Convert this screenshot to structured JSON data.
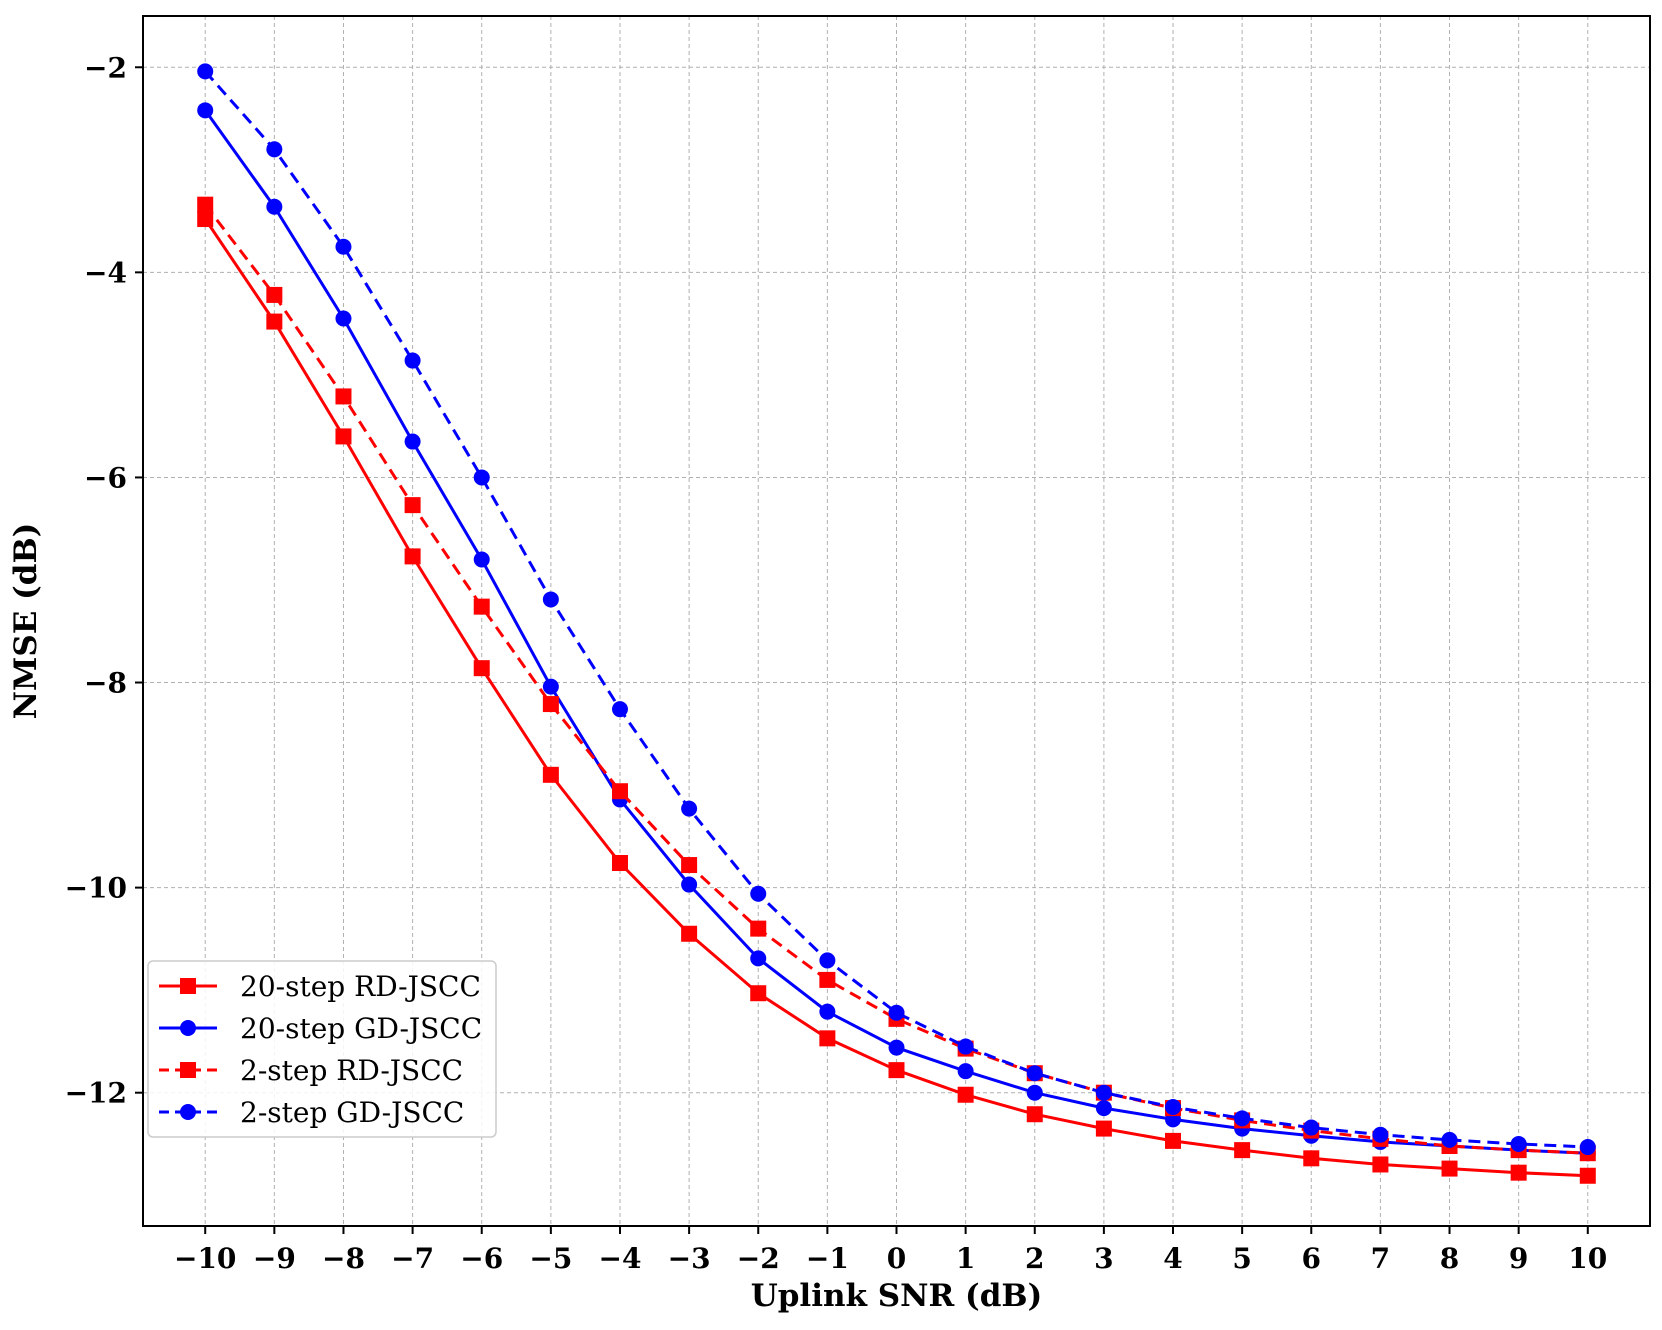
{
  "chart_data": {
    "type": "line",
    "title": "",
    "xlabel": "Uplink SNR (dB)",
    "ylabel": "NMSE (dB)",
    "x": [
      -10,
      -9,
      -8,
      -7,
      -6,
      -5,
      -4,
      -3,
      -2,
      -1,
      0,
      1,
      2,
      3,
      4,
      5,
      6,
      7,
      8,
      9,
      10
    ],
    "xlim": [
      -10.9,
      10.9
    ],
    "ylim": [
      -13.3,
      -1.5
    ],
    "xticks": [
      -10,
      -9,
      -8,
      -7,
      -6,
      -5,
      -4,
      -3,
      -2,
      -1,
      0,
      1,
      2,
      3,
      4,
      5,
      6,
      7,
      8,
      9,
      10
    ],
    "xtick_labels": [
      "−10",
      "−9",
      "−8",
      "−7",
      "−6",
      "−5",
      "−4",
      "−3",
      "−2",
      "−1",
      "0",
      "1",
      "2",
      "3",
      "4",
      "5",
      "6",
      "7",
      "8",
      "9",
      "10"
    ],
    "yticks": [
      -2,
      -4,
      -6,
      -8,
      -10,
      -12
    ],
    "ytick_labels": [
      "−2",
      "−4",
      "−6",
      "−8",
      "−10",
      "−12"
    ],
    "grid": true,
    "legend_position": "lower-left",
    "series": [
      {
        "name": "20-step RD-JSCC",
        "color": "#ff0000",
        "linestyle": "solid",
        "marker": "square",
        "values": [
          -3.48,
          -4.48,
          -5.6,
          -6.77,
          -7.86,
          -8.9,
          -9.76,
          -10.45,
          -11.03,
          -11.47,
          -11.78,
          -12.02,
          -12.21,
          -12.35,
          -12.47,
          -12.56,
          -12.64,
          -12.7,
          -12.74,
          -12.78,
          -12.81
        ]
      },
      {
        "name": "20-step GD-JSCC",
        "color": "#0000ff",
        "linestyle": "solid",
        "marker": "circle",
        "values": [
          -2.42,
          -3.36,
          -4.45,
          -5.65,
          -6.8,
          -8.04,
          -9.14,
          -9.97,
          -10.69,
          -11.21,
          -11.56,
          -11.79,
          -12.0,
          -12.15,
          -12.26,
          -12.35,
          -12.42,
          -12.48,
          -12.52,
          -12.56,
          -12.59
        ]
      },
      {
        "name": "2-step RD-JSCC",
        "color": "#ff0000",
        "linestyle": "dashed",
        "marker": "square",
        "values": [
          -3.34,
          -4.22,
          -5.21,
          -6.27,
          -7.26,
          -8.21,
          -9.06,
          -9.78,
          -10.4,
          -10.9,
          -11.28,
          -11.57,
          -11.81,
          -12.0,
          -12.15,
          -12.27,
          -12.37,
          -12.45,
          -12.52,
          -12.56,
          -12.59
        ]
      },
      {
        "name": "2-step GD-JSCC",
        "color": "#0000ff",
        "linestyle": "dashed",
        "marker": "circle",
        "values": [
          -2.04,
          -2.8,
          -3.75,
          -4.86,
          -6.0,
          -7.19,
          -8.26,
          -9.23,
          -10.06,
          -10.71,
          -11.22,
          -11.55,
          -11.81,
          -12.0,
          -12.14,
          -12.25,
          -12.34,
          -12.41,
          -12.46,
          -12.5,
          -12.53
        ]
      }
    ]
  }
}
